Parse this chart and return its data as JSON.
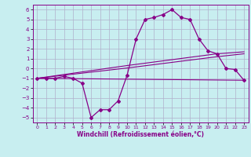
{
  "bg_color": "#c8eef0",
  "grid_color": "#b0b0cc",
  "line_color": "#880088",
  "xlim": [
    -0.5,
    23.5
  ],
  "ylim": [
    -5.5,
    6.5
  ],
  "xlabel": "Windchill (Refroidissement éolien,°C)",
  "yticks": [
    -5,
    -4,
    -3,
    -2,
    -1,
    0,
    1,
    2,
    3,
    4,
    5,
    6
  ],
  "xticks": [
    0,
    1,
    2,
    3,
    4,
    5,
    6,
    7,
    8,
    9,
    10,
    11,
    12,
    13,
    14,
    15,
    16,
    17,
    18,
    19,
    20,
    21,
    22,
    23
  ],
  "line1_x": [
    0,
    1,
    2,
    3,
    4,
    5,
    6,
    7,
    8,
    9,
    10,
    11,
    12,
    13,
    14,
    15,
    16,
    17,
    18,
    19,
    20,
    21,
    22,
    23
  ],
  "line1_y": [
    -1,
    -1,
    -1,
    -0.8,
    -1,
    -1.5,
    -5,
    -4.2,
    -4.2,
    -3.3,
    -0.7,
    3,
    5,
    5.2,
    5.5,
    6,
    5.2,
    5,
    3,
    1.8,
    1.5,
    0,
    -0.1,
    -1.2
  ],
  "line2_x": [
    0,
    23
  ],
  "line2_y": [
    -1,
    -1.2
  ],
  "line3_x": [
    0,
    10,
    20,
    23
  ],
  "line3_y": [
    -1,
    0.3,
    1.5,
    1.7
  ],
  "line4_x": [
    0,
    10,
    20,
    23
  ],
  "line4_y": [
    -1,
    0.05,
    1.2,
    1.5
  ]
}
